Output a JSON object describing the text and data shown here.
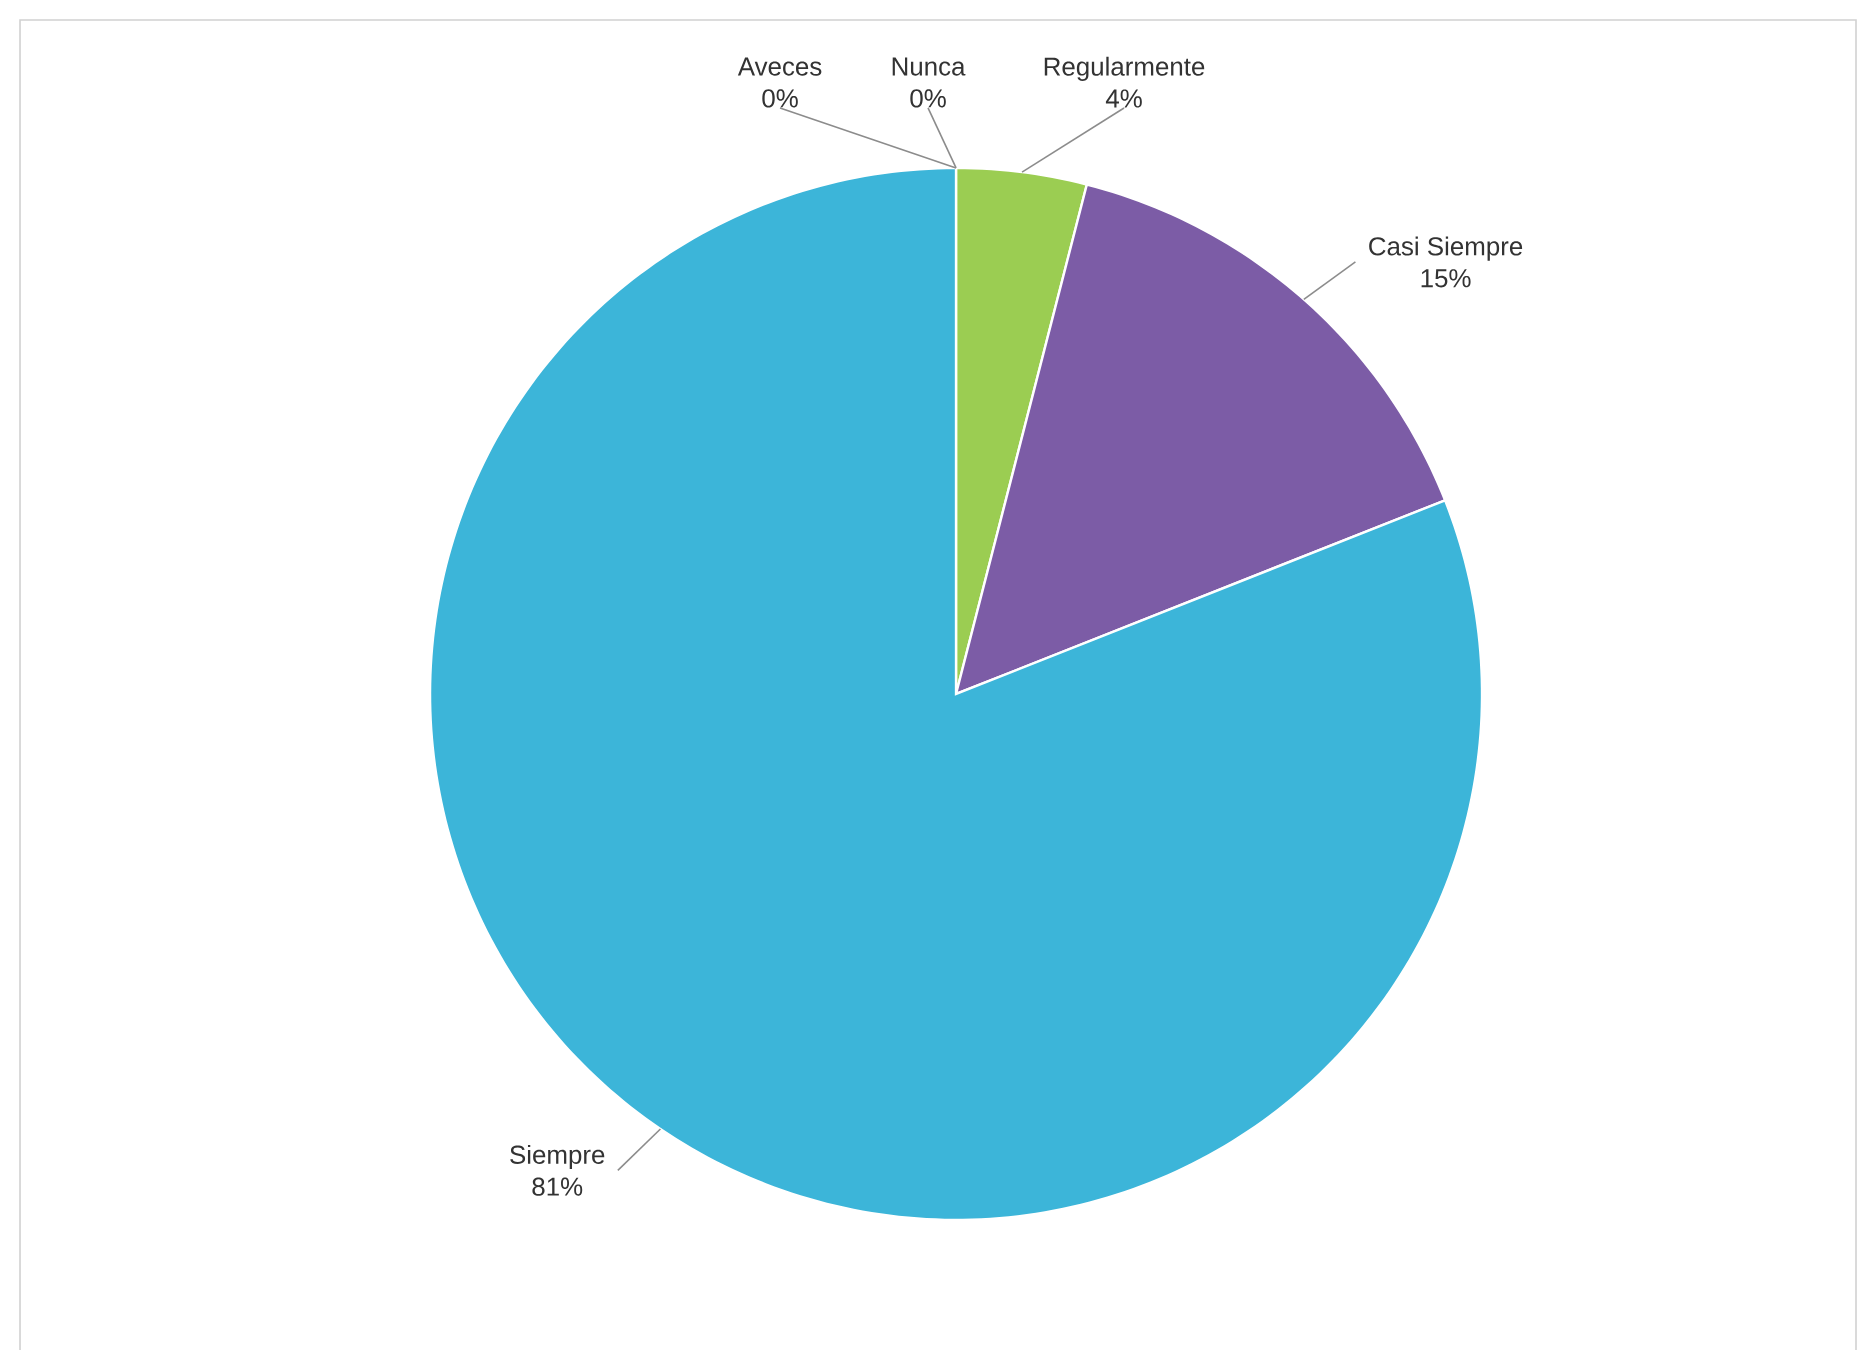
{
  "chart_data": {
    "type": "pie",
    "categories": [
      "Aveces",
      "Nunca",
      "Regularmente",
      "Casi Siempre",
      "Siempre"
    ],
    "values": [
      0,
      0,
      4,
      15,
      81
    ],
    "value_labels": [
      "0%",
      "0%",
      "4%",
      "15%",
      "81%"
    ],
    "colors": [
      "#4f81bd",
      "#c0504d",
      "#9bcd52",
      "#7c5ca6",
      "#3cb5d9"
    ]
  }
}
